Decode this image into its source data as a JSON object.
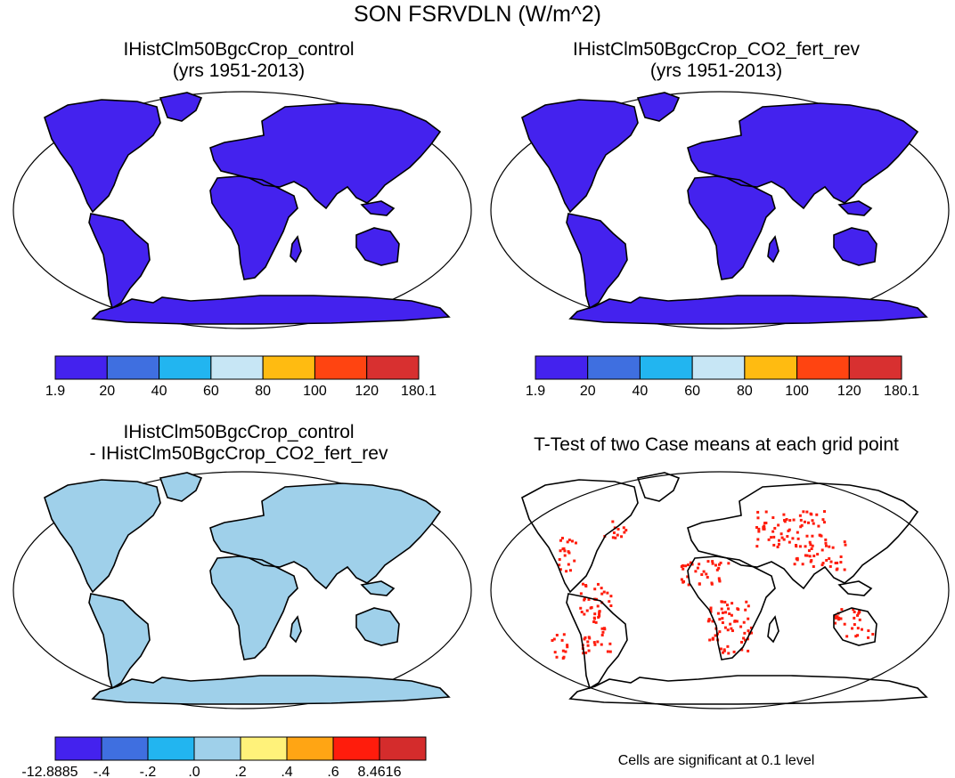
{
  "title": "SON FSRVDLN (W/m^2)",
  "panels": [
    {
      "title_line1": "IHistClm50BgcCrop_control",
      "title_line2": "(yrs 1951-2013)"
    },
    {
      "title_line1": "IHistClm50BgcCrop_CO2_fert_rev",
      "title_line2": "(yrs 1951-2013)"
    },
    {
      "title_line1": "IHistClm50BgcCrop_control",
      "title_line2": "- IHistClm50BgcCrop_CO2_fert_rev"
    },
    {
      "title_line1": "T-Test of two Case means at each grid point",
      "title_line2": ""
    }
  ],
  "colorbars": {
    "abs": {
      "colors": [
        "#4422ee",
        "#3f6fe0",
        "#22b5f0",
        "#c7e6f5",
        "#ffbb11",
        "#ff4411",
        "#d83030"
      ],
      "labels": [
        "1.9",
        "20",
        "40",
        "60",
        "80",
        "100",
        "120",
        "180.1"
      ]
    },
    "diff": {
      "colors": [
        "#4422ee",
        "#3f6fe0",
        "#22b5f0",
        "#9fd0ea",
        "#fff27a",
        "#ffa514",
        "#ff1c0c",
        "#d42c2c"
      ],
      "labels": [
        "-12.8885",
        "-.4",
        "-.2",
        ".0",
        ".2",
        ".4",
        ".6",
        "8.4616"
      ]
    }
  },
  "ttest_note": "Cells are significant at 0.1 level",
  "map_colors": {
    "land_abs": "#4422ee",
    "land_diff": "#9fd0ea",
    "antarctica_diff": "#fff27a",
    "significant": "#ff1c0c"
  }
}
